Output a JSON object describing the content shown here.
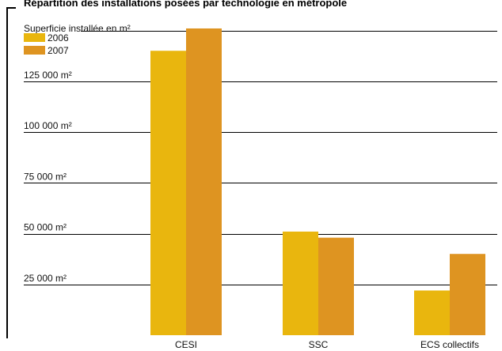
{
  "chart_data": {
    "type": "bar",
    "title": "Répartition des installations posées par technologie en métropole",
    "ylabel": "Superficie installée en m²",
    "categories": [
      "CESI",
      "SSC",
      "ECS collectifs"
    ],
    "series": [
      {
        "name": "2006",
        "values": [
          140000,
          51000,
          22000
        ]
      },
      {
        "name": "2007",
        "values": [
          151000,
          48000,
          40000
        ]
      }
    ],
    "ylim": [
      0,
      165000
    ],
    "yticks": [
      {
        "value": 25000,
        "label": "25 000 m²"
      },
      {
        "value": 50000,
        "label": "50 000 m²"
      },
      {
        "value": 75000,
        "label": "75 000 m²"
      },
      {
        "value": 100000,
        "label": "100 000 m²"
      },
      {
        "value": 125000,
        "label": "125 000 m²"
      }
    ],
    "gridlines": [
      25000,
      50000,
      75000,
      100000,
      125000,
      150000
    ],
    "grid": true,
    "legend": "top-left",
    "colors": {
      "2006": "#E9B60E",
      "2007": "#DE9421"
    }
  }
}
